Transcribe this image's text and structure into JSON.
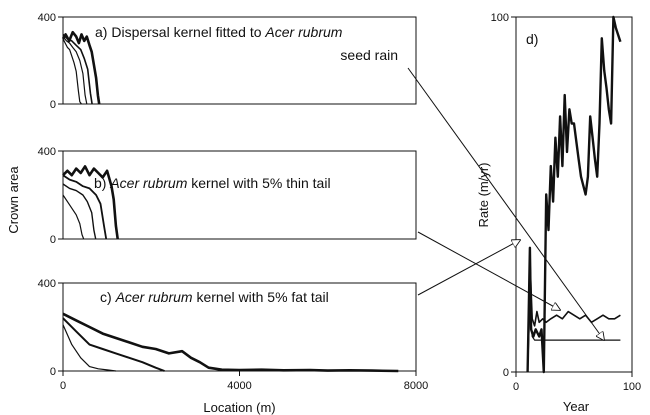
{
  "chart_data": [
    {
      "type": "line",
      "id": "a",
      "annotation": {
        "letter": "a)",
        "text1": "Dispersal kernel fitted to ",
        "species": "Acer rubrum",
        "text2": "seed rain"
      },
      "xlim": [
        0,
        8000
      ],
      "ylim": [
        0,
        400
      ],
      "xticks": [],
      "yticks": [
        0,
        400
      ],
      "series": [
        {
          "x": [
            0,
            50,
            100,
            150,
            200,
            250,
            300,
            350,
            380,
            420
          ],
          "y": [
            300,
            280,
            260,
            250,
            220,
            190,
            150,
            60,
            10,
            0
          ]
        },
        {
          "x": [
            0,
            80,
            150,
            220,
            300,
            380,
            450,
            500,
            540
          ],
          "y": [
            310,
            290,
            280,
            260,
            240,
            200,
            140,
            40,
            0
          ]
        },
        {
          "x": [
            0,
            100,
            200,
            300,
            400,
            480,
            560,
            620,
            660
          ],
          "y": [
            320,
            300,
            290,
            270,
            250,
            210,
            160,
            50,
            0
          ]
        },
        {
          "x": [
            0,
            60,
            140,
            220,
            300,
            360,
            420,
            480,
            540,
            600,
            650,
            700,
            750,
            790,
            820
          ],
          "y": [
            300,
            320,
            290,
            330,
            310,
            280,
            320,
            290,
            310,
            270,
            240,
            180,
            120,
            40,
            0
          ]
        }
      ]
    },
    {
      "type": "line",
      "id": "b",
      "annotation": {
        "letter": "b)",
        "species": "Acer rubrum",
        "text": " kernel with 5% thin tail"
      },
      "xlim": [
        0,
        8000
      ],
      "ylim": [
        0,
        400
      ],
      "xticks": [],
      "yticks": [
        0,
        400
      ],
      "ylabel": "Crown area",
      "series": [
        {
          "x": [
            0,
            100,
            200,
            300,
            380,
            430,
            470
          ],
          "y": [
            200,
            170,
            140,
            110,
            70,
            20,
            0
          ]
        },
        {
          "x": [
            0,
            150,
            300,
            450,
            550,
            650,
            700,
            740
          ],
          "y": [
            250,
            230,
            220,
            200,
            170,
            120,
            40,
            0
          ]
        },
        {
          "x": [
            0,
            150,
            300,
            450,
            600,
            750,
            850,
            930,
            980
          ],
          "y": [
            290,
            270,
            260,
            240,
            230,
            200,
            160,
            60,
            0
          ]
        },
        {
          "x": [
            0,
            100,
            200,
            300,
            400,
            500,
            600,
            700,
            800,
            900,
            1000,
            1100,
            1150,
            1200,
            1240
          ],
          "y": [
            290,
            310,
            290,
            320,
            300,
            330,
            290,
            320,
            300,
            280,
            310,
            240,
            180,
            60,
            0
          ]
        }
      ]
    },
    {
      "type": "line",
      "id": "c",
      "annotation": {
        "letter": "c)",
        "species": "Acer rubrum",
        "text": " kernel with 5% fat tail"
      },
      "xlim": [
        0,
        8000
      ],
      "ylim": [
        0,
        400
      ],
      "xticks": [
        0,
        4000,
        8000
      ],
      "yticks": [
        0,
        400
      ],
      "xlabel": "Location (m)",
      "series": [
        {
          "x": [
            0,
            200,
            400,
            600,
            800,
            1000,
            1200
          ],
          "y": [
            210,
            120,
            60,
            20,
            10,
            5,
            0
          ]
        },
        {
          "x": [
            0,
            300,
            600,
            900,
            1200,
            1500,
            1800,
            2100,
            2300
          ],
          "y": [
            240,
            180,
            120,
            100,
            80,
            60,
            40,
            15,
            0
          ]
        },
        {
          "x": [
            0,
            300,
            600,
            900,
            1200,
            1500,
            1800,
            2100,
            2400,
            2700,
            2900,
            3100,
            3300,
            3600,
            4000,
            4500,
            5000,
            5600,
            6000,
            6500,
            7000,
            7600
          ],
          "y": [
            260,
            230,
            200,
            170,
            150,
            130,
            110,
            100,
            80,
            90,
            60,
            40,
            15,
            6,
            4,
            6,
            3,
            4,
            2,
            3,
            2,
            0
          ]
        }
      ]
    },
    {
      "type": "line",
      "id": "d",
      "annotation": {
        "letter": "d)"
      },
      "xlim": [
        0,
        100
      ],
      "ylim": [
        0,
        100
      ],
      "xticks": [
        0,
        100
      ],
      "yticks": [
        0,
        100
      ],
      "xlabel": "Year",
      "ylabel": "Rate (m/yr)",
      "series": [
        {
          "x": [
            10,
            12,
            14,
            16,
            18,
            20,
            23,
            26,
            30,
            35,
            40,
            45,
            50,
            55,
            60,
            65,
            70,
            75,
            80,
            85,
            90
          ],
          "y": [
            0,
            32,
            15,
            13,
            17,
            14,
            15,
            14,
            15,
            16,
            15,
            17,
            16,
            15,
            16,
            14,
            15,
            16,
            15,
            15,
            16
          ]
        },
        {
          "x": [
            10,
            12,
            14,
            16,
            20,
            25,
            30,
            40,
            50,
            60,
            70,
            80,
            90
          ],
          "y": [
            0,
            18,
            10,
            9,
            9,
            9,
            9,
            9,
            9,
            9,
            9,
            9,
            9
          ]
        },
        {
          "x": [
            10,
            12,
            13,
            15,
            17,
            20,
            22,
            24,
            26,
            28,
            30,
            32,
            34,
            36,
            38,
            40,
            42,
            44,
            46,
            48,
            50,
            52,
            54,
            56,
            60,
            62,
            64,
            66,
            68,
            70,
            72,
            74,
            76,
            78,
            80,
            82,
            84,
            86,
            88,
            90
          ],
          "y": [
            0,
            35,
            12,
            10,
            12,
            10,
            12,
            0,
            50,
            40,
            58,
            48,
            66,
            55,
            72,
            58,
            78,
            62,
            74,
            70,
            70,
            65,
            60,
            55,
            50,
            55,
            72,
            66,
            60,
            55,
            70,
            94,
            85,
            80,
            74,
            70,
            100,
            97,
            95,
            93
          ]
        }
      ]
    }
  ]
}
